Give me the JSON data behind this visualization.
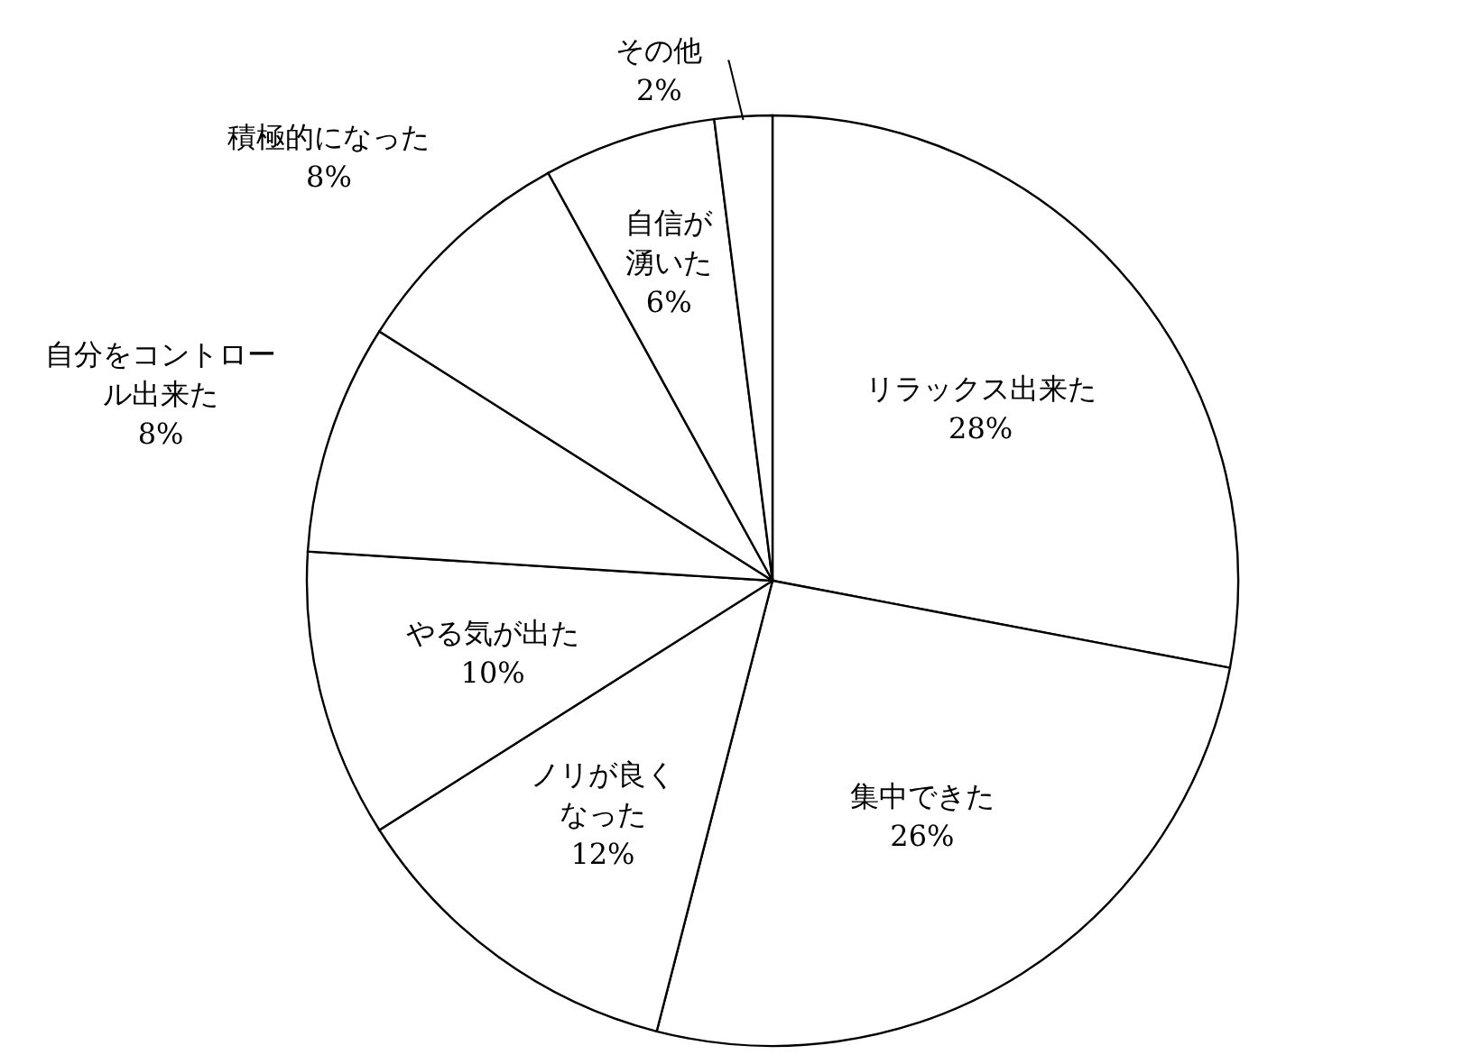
{
  "chart_data": {
    "type": "pie",
    "categories": [
      "リラックス出来た",
      "集中できた",
      "ノリが良くなった",
      "やる気が出た",
      "自分をコントロール出来た",
      "積極的になった",
      "自信が湧いた",
      "その他"
    ],
    "values": [
      28,
      26,
      12,
      10,
      8,
      8,
      6,
      2
    ],
    "value_labels": [
      "28%",
      "26%",
      "12%",
      "10%",
      "8%",
      "8%",
      "6%",
      "2%"
    ],
    "colors": [
      "#ffffff",
      "#ffffff",
      "#ffffff",
      "#ffffff",
      "#ffffff",
      "#ffffff",
      "#ffffff",
      "#ffffff"
    ],
    "legend": false
  }
}
